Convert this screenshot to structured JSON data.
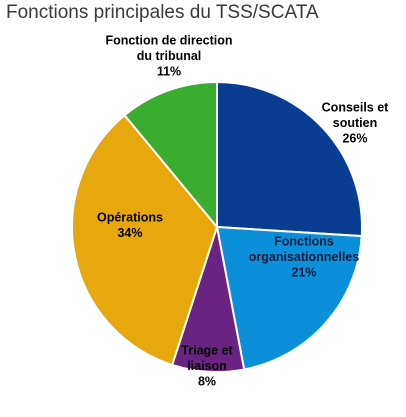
{
  "chart_data": {
    "type": "pie",
    "title": "Fonctions principales du TSS/SCATA",
    "slices": [
      {
        "label": [
          "Conseils et",
          "soutien"
        ],
        "pct_label": "26%",
        "value": 26,
        "color": "#0a3d91",
        "text_color": "#000000"
      },
      {
        "label": [
          "Fonctions",
          "organisationnelles"
        ],
        "pct_label": "21%",
        "value": 21,
        "color": "#0a8fd8",
        "text_color": "#0b1a3a"
      },
      {
        "label": [
          "Triage et",
          "liaison"
        ],
        "pct_label": "8%",
        "value": 8,
        "color": "#6b2383",
        "text_color": "#000000"
      },
      {
        "label": [
          "Opérations"
        ],
        "pct_label": "34%",
        "value": 34,
        "color": "#e6a80d",
        "text_color": "#000000"
      },
      {
        "label": [
          "Fonction de direction",
          "du tribunal"
        ],
        "pct_label": "11%",
        "value": 11,
        "color": "#3aac2f",
        "text_color": "#000000"
      }
    ],
    "start_angle_deg": 0,
    "direction": "clockwise",
    "border_color": "#ffffff"
  }
}
